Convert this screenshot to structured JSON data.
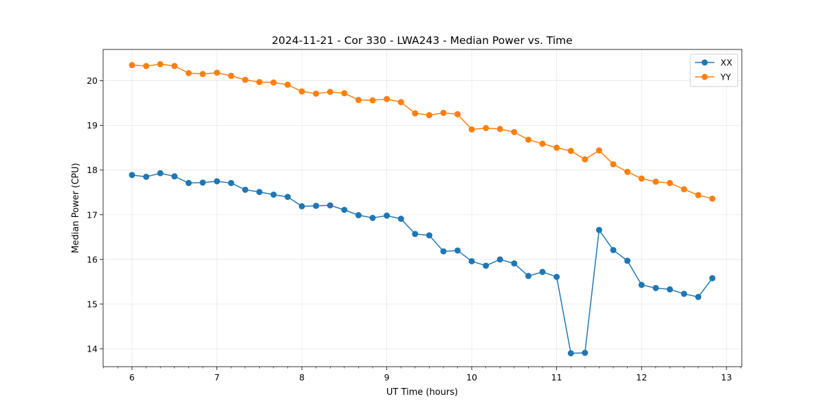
{
  "chart_data": {
    "type": "line",
    "title": "2024-11-21 - Cor 330 - LWA243 - Median Power vs. Time",
    "xlabel": "UT Time (hours)",
    "ylabel": "Median Power (CPU)",
    "xlim": [
      5.66,
      13.18
    ],
    "ylim": [
      13.6,
      20.7
    ],
    "grid": true,
    "legend_position": "top-right",
    "x_ticks": [
      6,
      7,
      8,
      9,
      10,
      11,
      12,
      13
    ],
    "y_ticks": [
      14,
      15,
      16,
      17,
      18,
      19,
      20
    ],
    "x": [
      6.0,
      6.167,
      6.333,
      6.5,
      6.667,
      6.833,
      7.0,
      7.167,
      7.333,
      7.5,
      7.667,
      7.833,
      8.0,
      8.167,
      8.333,
      8.5,
      8.667,
      8.833,
      9.0,
      9.167,
      9.333,
      9.5,
      9.667,
      9.833,
      10.0,
      10.167,
      10.333,
      10.5,
      10.667,
      10.833,
      11.0,
      11.167,
      11.333,
      11.5,
      11.667,
      11.833,
      12.0,
      12.167,
      12.333,
      12.5,
      12.667,
      12.833
    ],
    "series": [
      {
        "name": "XX",
        "color": "#1f77b4",
        "values": [
          17.89,
          17.85,
          17.93,
          17.86,
          17.71,
          17.72,
          17.75,
          17.71,
          17.56,
          17.51,
          17.45,
          17.4,
          17.19,
          17.2,
          17.21,
          17.11,
          16.99,
          16.93,
          16.98,
          16.91,
          16.57,
          16.54,
          16.18,
          16.2,
          15.96,
          15.86,
          16.0,
          15.91,
          15.63,
          15.72,
          15.61,
          13.9,
          13.91,
          16.66,
          16.21,
          15.97,
          15.43,
          15.36,
          15.33,
          15.23,
          15.16,
          15.58
        ]
      },
      {
        "name": "YY",
        "color": "#ff7f0e",
        "values": [
          20.35,
          20.33,
          20.37,
          20.33,
          20.17,
          20.15,
          20.18,
          20.11,
          20.02,
          19.97,
          19.96,
          19.91,
          19.76,
          19.71,
          19.75,
          19.72,
          19.57,
          19.56,
          19.59,
          19.52,
          19.27,
          19.23,
          19.28,
          19.25,
          18.91,
          18.94,
          18.92,
          18.85,
          18.68,
          18.59,
          18.5,
          18.43,
          18.24,
          18.44,
          18.13,
          17.96,
          17.81,
          17.74,
          17.71,
          17.57,
          17.44,
          17.36
        ]
      }
    ]
  }
}
